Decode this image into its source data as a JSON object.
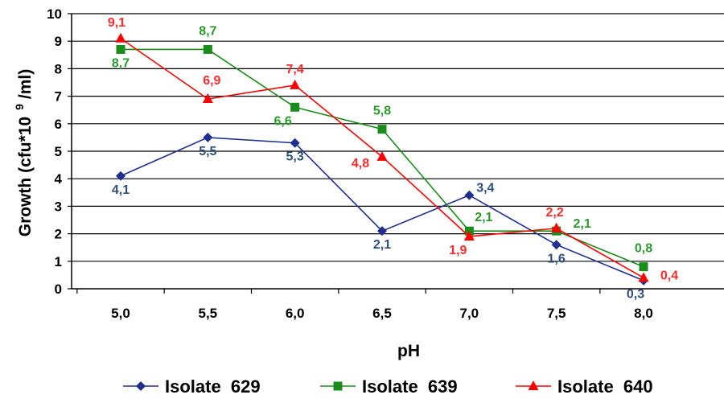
{
  "chart_data": {
    "type": "line",
    "x": [
      "5,0",
      "5,5",
      "6,0",
      "6,5",
      "7,0",
      "7,5",
      "8,0"
    ],
    "xlabel": "pH",
    "ylabel": "Growth (cfu*10",
    "ylabel_sup": "9",
    "ylabel_tail": "/ml)",
    "ylim": [
      0,
      10
    ],
    "yticks": [
      "0",
      "1",
      "2",
      "3",
      "4",
      "5",
      "6",
      "7",
      "8",
      "9",
      "10"
    ],
    "grid": true,
    "legend_position": "bottom",
    "series": [
      {
        "name": "Isolate  629",
        "color": "#1f2f8f",
        "label_color": "#2e4f7a",
        "marker": "diamond",
        "values": [
          4.1,
          5.5,
          5.3,
          2.1,
          3.4,
          1.6,
          0.3
        ],
        "labels": [
          "4,1",
          "5,5",
          "5,3",
          "2,1",
          "3,4",
          "1,6",
          "0,3"
        ]
      },
      {
        "name": "Isolate  639",
        "color": "#1a8c1a",
        "label_color": "#2a9a2a",
        "marker": "square",
        "values": [
          8.7,
          8.7,
          6.6,
          5.8,
          2.1,
          2.1,
          0.8
        ],
        "labels": [
          "8,7",
          "8,7",
          "6,6",
          "5,8",
          "2,1",
          "2,1",
          "0,8"
        ]
      },
      {
        "name": "Isolate  640",
        "color": "#ff0000",
        "label_color": "#ff2a2a",
        "marker": "triangle",
        "values": [
          9.1,
          6.9,
          7.4,
          4.8,
          1.9,
          2.2,
          0.4
        ],
        "labels": [
          "9,1",
          "6,9",
          "7,4",
          "4,8",
          "1,9",
          "2,2",
          "0,4"
        ]
      }
    ]
  }
}
